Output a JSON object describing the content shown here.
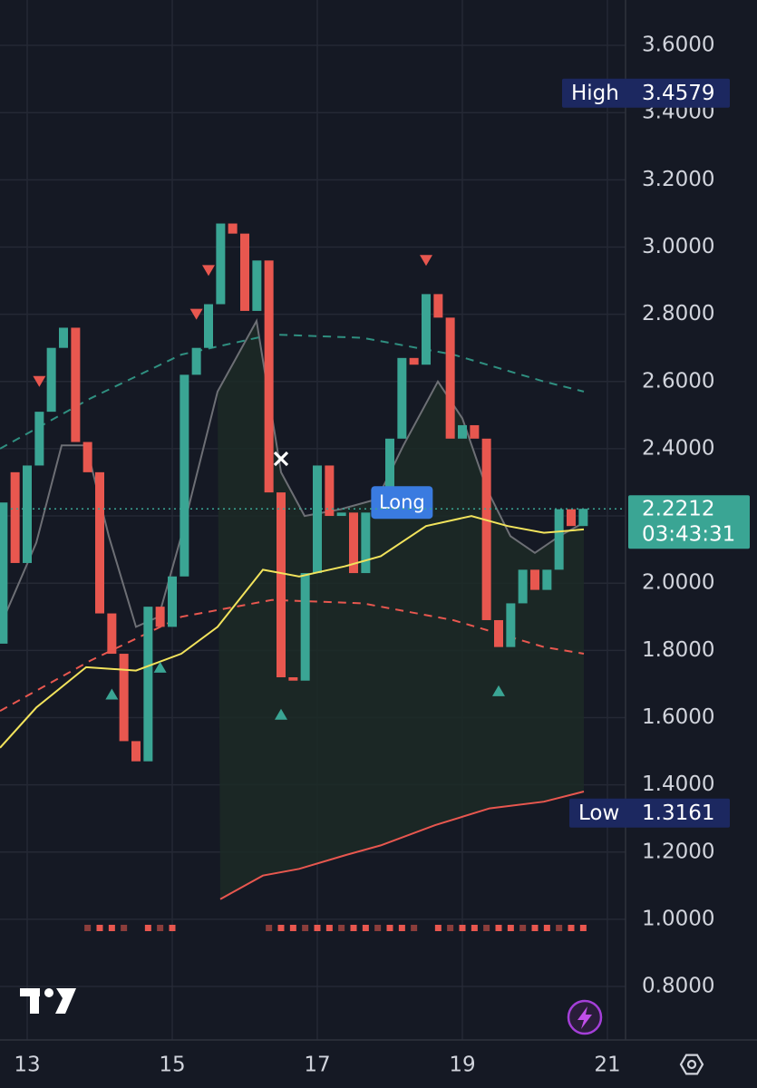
{
  "chart_data": {
    "type": "candlestick",
    "x": [
      12.667,
      12.833,
      13.0,
      13.167,
      13.333,
      13.5,
      13.667,
      13.833,
      14.0,
      14.167,
      14.333,
      14.5,
      14.667,
      14.833,
      15.0,
      15.167,
      15.333,
      15.5,
      15.667,
      15.833,
      16.0,
      16.167,
      16.333,
      16.5,
      16.667,
      16.833,
      17.0,
      17.167,
      17.333,
      17.5,
      17.667,
      17.833,
      18.0,
      18.167,
      18.333,
      18.5,
      18.667,
      18.833,
      19.0,
      19.167,
      19.333,
      19.5,
      19.667,
      19.833,
      20.0,
      20.167,
      20.333,
      20.5,
      20.667
    ],
    "open": [
      1.82,
      2.33,
      2.06,
      2.35,
      2.51,
      2.7,
      2.76,
      2.42,
      2.33,
      1.91,
      1.79,
      1.53,
      1.47,
      1.93,
      1.87,
      2.02,
      2.62,
      2.7,
      2.83,
      3.07,
      3.04,
      2.81,
      2.96,
      2.27,
      1.72,
      1.71,
      2.03,
      2.35,
      2.2,
      2.21,
      2.03,
      2.21,
      2.24,
      2.43,
      2.67,
      2.65,
      2.86,
      2.79,
      2.43,
      2.47,
      2.43,
      1.89,
      1.81,
      1.94,
      2.04,
      1.98,
      2.04,
      2.22,
      2.17
    ],
    "high": {
      "label": "High",
      "value": 3.4579
    },
    "low": {
      "label": "Low",
      "value": 1.3161
    },
    "close": [
      2.24,
      2.06,
      2.35,
      2.51,
      2.7,
      2.76,
      2.42,
      2.33,
      1.91,
      1.79,
      1.53,
      1.47,
      1.93,
      1.87,
      2.02,
      2.62,
      2.7,
      2.83,
      3.07,
      3.04,
      2.81,
      2.96,
      2.27,
      1.72,
      1.71,
      2.03,
      2.35,
      2.2,
      2.21,
      2.03,
      2.21,
      2.24,
      2.43,
      2.67,
      2.65,
      2.86,
      2.79,
      2.43,
      2.47,
      2.43,
      1.89,
      1.81,
      1.94,
      2.04,
      1.98,
      2.04,
      2.22,
      2.17,
      2.2212
    ],
    "up_color": "#3aa594",
    "down_color": "#e8574f",
    "xlim": [
      12.625,
      21.25
    ],
    "xticks": [
      13,
      15,
      17,
      19,
      21
    ],
    "ylim": [
      0.641,
      3.735
    ],
    "yticks": [
      {
        "value": 0.8,
        "label": "0.8000"
      },
      {
        "value": 1.0,
        "label": "1.0000"
      },
      {
        "value": 1.2,
        "label": "1.2000"
      },
      {
        "value": 1.4,
        "label": "1.4000"
      },
      {
        "value": 1.6,
        "label": "1.6000"
      },
      {
        "value": 1.8,
        "label": "1.8000"
      },
      {
        "value": 2.0,
        "label": "2.0000"
      },
      {
        "value": 2.2,
        "label": "2.2000"
      },
      {
        "value": 2.4,
        "label": "2.4000"
      },
      {
        "value": 2.6,
        "label": "2.6000"
      },
      {
        "value": 2.8,
        "label": "2.8000"
      },
      {
        "value": 3.0,
        "label": "3.0000"
      },
      {
        "value": 3.2,
        "label": "3.2000"
      },
      {
        "value": 3.4,
        "label": "3.4000"
      },
      {
        "value": 3.6,
        "label": "3.6000"
      }
    ],
    "grid": true,
    "overlays": [
      {
        "color": "#f2e35c",
        "dash": false,
        "x": [
          12.625,
          13.125,
          13.813,
          14.5,
          15.125,
          15.625,
          16.25,
          16.75,
          17.375,
          17.875,
          18.5,
          19.125,
          19.625,
          20.125,
          20.675
        ],
        "values": [
          1.51,
          1.63,
          1.75,
          1.74,
          1.79,
          1.87,
          2.04,
          2.02,
          2.05,
          2.08,
          2.17,
          2.2,
          2.17,
          2.15,
          2.16
        ]
      },
      {
        "color": "#6d6f75",
        "dash": false,
        "x": [
          12.625,
          13.125,
          13.475,
          13.813,
          14.125,
          14.5,
          14.813,
          15.125,
          15.625,
          16.163,
          16.5,
          16.825,
          17.325,
          17.825,
          18.188,
          18.663,
          19.0,
          19.338,
          19.663,
          20.0,
          20.338,
          20.675
        ],
        "values": [
          1.87,
          2.12,
          2.41,
          2.41,
          2.14,
          1.87,
          1.9,
          2.14,
          2.57,
          2.78,
          2.33,
          2.2,
          2.22,
          2.25,
          2.41,
          2.6,
          2.49,
          2.28,
          2.14,
          2.09,
          2.14,
          2.18
        ]
      },
      {
        "color": "#2f8f80",
        "dash": true,
        "x": [
          12.625,
          13.875,
          15.125,
          16.375,
          17.625,
          18.875,
          20.125,
          20.675
        ],
        "values": [
          2.4,
          2.55,
          2.68,
          2.74,
          2.73,
          2.68,
          2.6,
          2.57
        ]
      },
      {
        "color": "#e8574f",
        "dash": true,
        "x": [
          12.625,
          13.875,
          15.125,
          16.375,
          17.625,
          18.875,
          20.125,
          20.675
        ],
        "values": [
          1.62,
          1.77,
          1.9,
          1.95,
          1.94,
          1.89,
          1.81,
          1.79
        ]
      },
      {
        "color": "#e8574f",
        "dash": false,
        "x": [
          15.663,
          16.25,
          16.75,
          17.375,
          17.875,
          18.625,
          19.375,
          20.125,
          20.675
        ],
        "values": [
          1.06,
          1.13,
          1.15,
          1.19,
          1.22,
          1.28,
          1.33,
          1.35,
          1.38
        ]
      }
    ],
    "signals": [
      {
        "kind": "sell",
        "x": 13.167,
        "value": 2.6
      },
      {
        "kind": "sell",
        "x": 15.333,
        "value": 2.8
      },
      {
        "kind": "sell",
        "x": 15.5,
        "value": 2.93
      },
      {
        "kind": "sell",
        "x": 18.5,
        "value": 2.96
      },
      {
        "kind": "buy",
        "x": 14.167,
        "value": 1.67
      },
      {
        "kind": "buy",
        "x": 14.833,
        "value": 1.75
      },
      {
        "kind": "buy",
        "x": 16.5,
        "value": 1.61
      },
      {
        "kind": "buy",
        "x": 19.5,
        "value": 1.68
      },
      {
        "kind": "exit",
        "x": 16.5,
        "value": 2.37
      }
    ],
    "tags": [
      {
        "text": "Long",
        "x": 18.167,
        "value": 2.24
      }
    ],
    "last": {
      "value": 2.2212,
      "countdown": "03:43:31"
    }
  }
}
